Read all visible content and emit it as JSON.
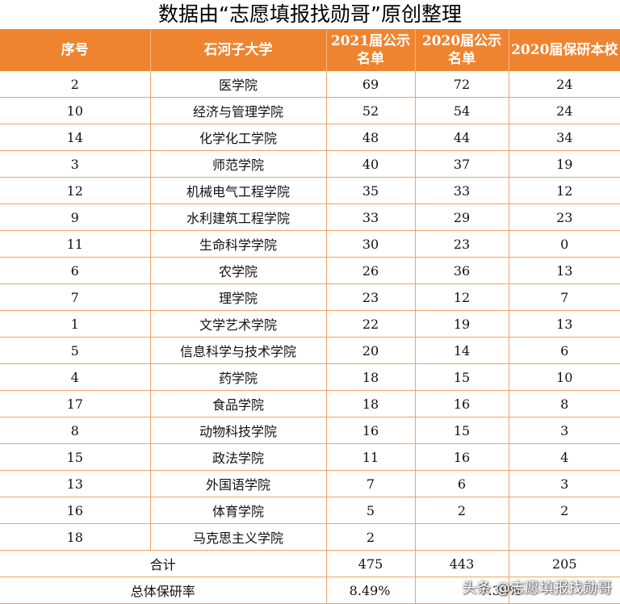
{
  "title": "数据由“志愿填报找勋哥”原创整理",
  "headers": [
    "序号",
    "石河子大学",
    "2021届公示名单",
    "2020届公示名单",
    "2020届保研本校"
  ],
  "rows": [
    [
      "2",
      "医学院",
      "69",
      "72",
      "24"
    ],
    [
      "10",
      "经济与管理学院",
      "52",
      "54",
      "24"
    ],
    [
      "14",
      "化学化工学院",
      "48",
      "44",
      "34"
    ],
    [
      "3",
      "师范学院",
      "40",
      "37",
      "19"
    ],
    [
      "12",
      "机械电气工程学院",
      "35",
      "33",
      "12"
    ],
    [
      "9",
      "水利建筑工程学院",
      "33",
      "29",
      "23"
    ],
    [
      "11",
      "生命科学学院",
      "30",
      "23",
      "0"
    ],
    [
      "6",
      "农学院",
      "26",
      "36",
      "13"
    ],
    [
      "7",
      "理学院",
      "23",
      "12",
      "7"
    ],
    [
      "1",
      "文学艺术学院",
      "22",
      "19",
      "13"
    ],
    [
      "5",
      "信息科学与技术学院",
      "20",
      "14",
      "6"
    ],
    [
      "4",
      "药学院",
      "18",
      "15",
      "10"
    ],
    [
      "17",
      "食品学院",
      "18",
      "16",
      "8"
    ],
    [
      "8",
      "动物科技学院",
      "16",
      "15",
      "3"
    ],
    [
      "15",
      "政法学院",
      "11",
      "16",
      "4"
    ],
    [
      "13",
      "外国语学院",
      "7",
      "6",
      "3"
    ],
    [
      "16",
      "体育学院",
      "5",
      "2",
      "2"
    ],
    [
      "18",
      "马克思主义学院",
      "2",
      "",
      ""
    ]
  ],
  "total": {
    "label": "合计",
    "values": [
      "475",
      "443",
      "205"
    ]
  },
  "rate": {
    "label": "总体保研率",
    "values": [
      "8.49%",
      "7.38%",
      ""
    ]
  },
  "watermark": "头条 @志愿填报找勋哥"
}
